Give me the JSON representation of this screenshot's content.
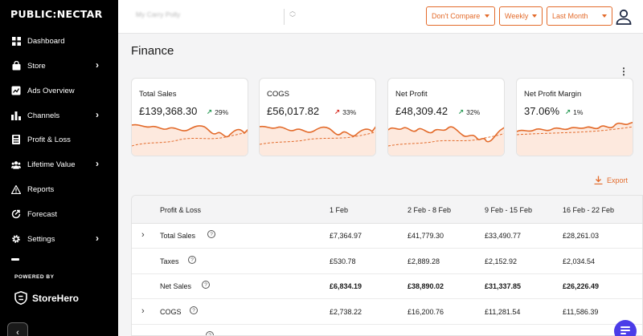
{
  "app": {
    "logo": "PUBLIC:NECTAR"
  },
  "sidebar": {
    "items": [
      {
        "label": "Dashboard",
        "icon": "grid-icon",
        "chevron": false
      },
      {
        "label": "Store",
        "icon": "bag-icon",
        "chevron": true
      },
      {
        "label": "Ads Overview",
        "icon": "chart-box-icon",
        "chevron": false
      },
      {
        "label": "Channels",
        "icon": "bar-chart-icon",
        "chevron": true
      },
      {
        "label": "Profit & Loss",
        "icon": "calculator-icon",
        "chevron": false
      },
      {
        "label": "Lifetime Value",
        "icon": "people-icon",
        "chevron": true
      },
      {
        "label": "Reports",
        "icon": "warning-icon",
        "chevron": false
      },
      {
        "label": "Forecast",
        "icon": "forecast-icon",
        "chevron": false
      },
      {
        "label": "Settings",
        "icon": "gear-icon",
        "chevron": true
      }
    ],
    "powered_by": "POWERED BY",
    "brand": "StoreHero"
  },
  "topbar": {
    "store_name": "My Carry Polly",
    "compare": "Don't Compare",
    "interval": "Weekly",
    "range": "Last Month"
  },
  "page": {
    "title": "Finance",
    "export_label": "Export"
  },
  "colors": {
    "accent": "#e36b2b",
    "up": "#2e9d5a",
    "down": "#d9362b"
  },
  "cards": [
    {
      "title": "Total Sales",
      "value": "£139,368.30",
      "delta": "29%",
      "direction": "up",
      "delta_color": "up"
    },
    {
      "title": "COGS",
      "value": "£56,017.82",
      "delta": "33%",
      "direction": "up",
      "delta_color": "down"
    },
    {
      "title": "Net Profit",
      "value": "£48,309.42",
      "delta": "32%",
      "direction": "up",
      "delta_color": "up"
    },
    {
      "title": "Net Profit Margin",
      "value": "37.06%",
      "delta": "1%",
      "direction": "up",
      "delta_color": "up"
    }
  ],
  "table": {
    "headers": [
      "Profit & Loss",
      "1 Feb",
      "2 Feb - 8 Feb",
      "9 Feb - 15 Feb",
      "16 Feb - 22 Feb"
    ],
    "rows": [
      {
        "label": "Total Sales",
        "expandable": true,
        "bold": false,
        "values": [
          "£7,364.97",
          "£41,779.30",
          "£33,490.77",
          "£28,261.03"
        ]
      },
      {
        "label": "Taxes",
        "expandable": false,
        "bold": false,
        "values": [
          "£530.78",
          "£2,889.28",
          "£2,152.92",
          "£2,034.54"
        ]
      },
      {
        "label": "Net Sales",
        "expandable": false,
        "bold": true,
        "values": [
          "£6,834.19",
          "£38,890.02",
          "£31,337.85",
          "£26,226.49"
        ]
      },
      {
        "label": "COGS",
        "expandable": true,
        "bold": false,
        "values": [
          "£2,738.22",
          "£16,200.76",
          "£11,281.54",
          "£11,586.39"
        ]
      }
    ]
  }
}
